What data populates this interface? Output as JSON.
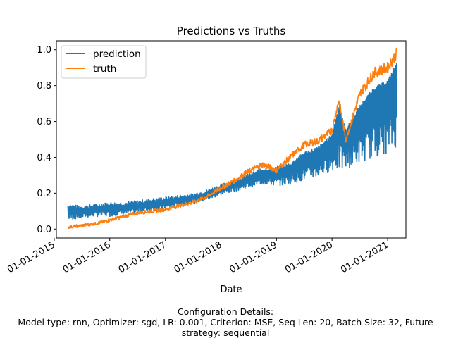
{
  "chart_data": {
    "type": "line",
    "title": "Predictions vs Truths",
    "xlabel": "Date",
    "ylabel": "",
    "xlim": [
      "2015-01-15",
      "2021-05-01"
    ],
    "ylim": [
      -0.05,
      1.05
    ],
    "yticks": [
      0.0,
      0.2,
      0.4,
      0.6,
      0.8,
      1.0
    ],
    "ytick_labels": [
      "0.0",
      "0.2",
      "0.4",
      "0.6",
      "0.8",
      "1.0"
    ],
    "xticks": [
      "2015-01-01",
      "2016-01-01",
      "2017-01-01",
      "2018-01-01",
      "2019-01-01",
      "2020-01-01",
      "2021-01-01"
    ],
    "xtick_labels": [
      "01-01-2015",
      "01-01-2016",
      "01-01-2017",
      "01-01-2018",
      "01-01-2019",
      "01-01-2020",
      "01-01-2021"
    ],
    "grid": false,
    "legend": "top-left",
    "colors": {
      "prediction": "#1f77b4",
      "truth": "#ff7f0e"
    },
    "series": [
      {
        "name": "prediction",
        "x": [
          "2015-04-01",
          "2015-07-01",
          "2015-10-01",
          "2016-01-01",
          "2016-04-01",
          "2016-07-01",
          "2016-10-01",
          "2017-01-01",
          "2017-04-01",
          "2017-07-01",
          "2017-10-01",
          "2018-01-01",
          "2018-04-01",
          "2018-07-01",
          "2018-10-01",
          "2019-01-01",
          "2019-04-01",
          "2019-07-01",
          "2019-10-01",
          "2020-01-01",
          "2020-02-15",
          "2020-04-01",
          "2020-07-01",
          "2020-10-01",
          "2021-01-01",
          "2021-03-01"
        ],
        "values": [
          0.13,
          0.12,
          0.13,
          0.14,
          0.14,
          0.15,
          0.16,
          0.17,
          0.18,
          0.19,
          0.21,
          0.24,
          0.27,
          0.3,
          0.33,
          0.34,
          0.36,
          0.42,
          0.45,
          0.52,
          0.68,
          0.55,
          0.68,
          0.78,
          0.82,
          0.92
        ],
        "low": [
          0.05,
          0.06,
          0.07,
          0.07,
          0.08,
          0.09,
          0.1,
          0.11,
          0.13,
          0.14,
          0.16,
          0.19,
          0.21,
          0.23,
          0.25,
          0.24,
          0.25,
          0.27,
          0.29,
          0.33,
          0.32,
          0.33,
          0.37,
          0.4,
          0.42,
          0.46
        ]
      },
      {
        "name": "truth",
        "x": [
          "2015-04-01",
          "2015-07-01",
          "2015-10-01",
          "2016-01-01",
          "2016-04-01",
          "2016-07-01",
          "2016-10-01",
          "2017-01-01",
          "2017-04-01",
          "2017-07-01",
          "2017-10-01",
          "2018-01-01",
          "2018-04-01",
          "2018-07-01",
          "2018-10-01",
          "2019-01-01",
          "2019-04-01",
          "2019-07-01",
          "2019-10-01",
          "2020-01-01",
          "2020-02-15",
          "2020-04-01",
          "2020-07-01",
          "2020-10-01",
          "2021-01-01",
          "2021-03-01"
        ],
        "values": [
          0.01,
          0.02,
          0.03,
          0.05,
          0.07,
          0.09,
          0.1,
          0.11,
          0.13,
          0.15,
          0.18,
          0.23,
          0.27,
          0.32,
          0.36,
          0.33,
          0.4,
          0.47,
          0.49,
          0.55,
          0.72,
          0.5,
          0.75,
          0.87,
          0.9,
          0.98
        ]
      }
    ]
  },
  "footer": {
    "line1": "Configuration Details:",
    "line2": "Model type: rnn, Optimizer: sgd, LR: 0.001, Criterion: MSE, Seq Len: 20, Batch Size: 32, Future",
    "line3": "strategy: sequential"
  }
}
